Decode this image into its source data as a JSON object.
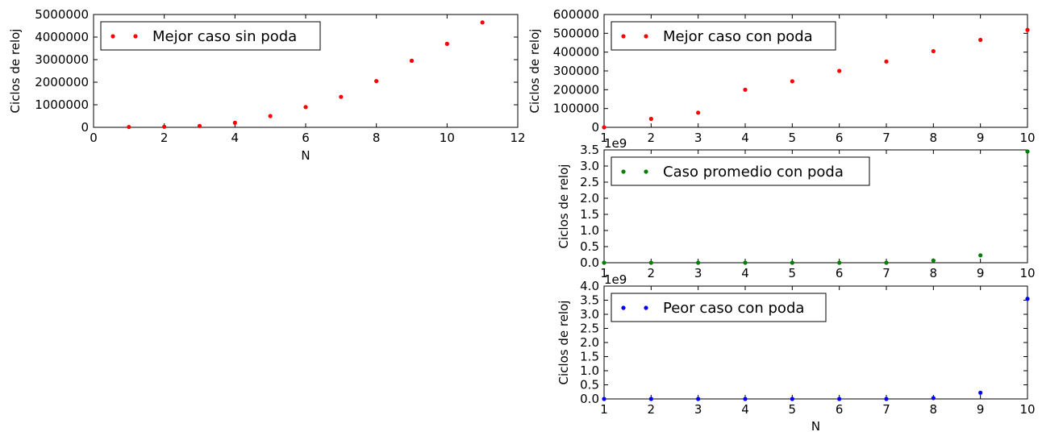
{
  "chart_data": [
    {
      "type": "scatter",
      "xlabel": "N",
      "ylabel": "Ciclos de reloj",
      "xlim": [
        0,
        12
      ],
      "ylim": [
        0,
        5000000
      ],
      "xticks": [
        "0",
        "2",
        "4",
        "6",
        "8",
        "10",
        "12"
      ],
      "yticks": [
        "0",
        "1000000",
        "2000000",
        "3000000",
        "4000000",
        "5000000"
      ],
      "offset_text": "",
      "legend_location": "top-left",
      "series": [
        {
          "name": "Mejor caso sin poda",
          "color": "#ff0000",
          "x": [
            1,
            2,
            3,
            4,
            5,
            6,
            7,
            8,
            9,
            10,
            11
          ],
          "y": [
            15000,
            25000,
            60000,
            200000,
            500000,
            900000,
            1350000,
            2050000,
            2950000,
            3700000,
            4650000
          ]
        }
      ]
    },
    {
      "type": "scatter",
      "xlabel": "",
      "ylabel": "Ciclos de reloj",
      "xlim": [
        1,
        10
      ],
      "ylim": [
        0,
        600000
      ],
      "xticks": [
        "1",
        "2",
        "3",
        "4",
        "5",
        "6",
        "7",
        "8",
        "9",
        "10"
      ],
      "yticks": [
        "0",
        "100000",
        "200000",
        "300000",
        "400000",
        "500000",
        "600000"
      ],
      "offset_text": "",
      "legend_location": "top-left",
      "series": [
        {
          "name": "Mejor caso con poda",
          "color": "#ff0000",
          "x": [
            1,
            2,
            3,
            4,
            5,
            6,
            7,
            8,
            9,
            10
          ],
          "y": [
            0,
            45000,
            78000,
            200000,
            245000,
            300000,
            350000,
            405000,
            465000,
            518000
          ]
        }
      ]
    },
    {
      "type": "scatter",
      "xlabel": "",
      "ylabel": "Ciclos de reloj",
      "xlim": [
        1,
        10
      ],
      "ylim": [
        0,
        3.5
      ],
      "xticks": [
        "1",
        "2",
        "3",
        "4",
        "5",
        "6",
        "7",
        "8",
        "9",
        "10"
      ],
      "yticks": [
        "0.0",
        "0.5",
        "1.0",
        "1.5",
        "2.0",
        "2.5",
        "3.0",
        "3.5"
      ],
      "offset_text": "1e9",
      "legend_location": "top-left",
      "series": [
        {
          "name": "Caso promedio con poda",
          "color": "#008000",
          "x": [
            1,
            2,
            3,
            4,
            5,
            6,
            7,
            8,
            9,
            10
          ],
          "y": [
            0.0,
            0.0,
            0.0,
            0.0,
            0.0,
            0.0,
            0.0,
            0.07,
            0.23,
            3.45
          ]
        }
      ]
    },
    {
      "type": "scatter",
      "xlabel": "N",
      "ylabel": "Ciclos de reloj",
      "xlim": [
        1,
        10
      ],
      "ylim": [
        0,
        4.0
      ],
      "xticks": [
        "1",
        "2",
        "3",
        "4",
        "5",
        "6",
        "7",
        "8",
        "9",
        "10"
      ],
      "yticks": [
        "0.0",
        "0.5",
        "1.0",
        "1.5",
        "2.0",
        "2.5",
        "3.0",
        "3.5",
        "4.0"
      ],
      "offset_text": "1e9",
      "legend_location": "top-left",
      "series": [
        {
          "name": "Peor caso con poda",
          "color": "#0000ff",
          "x": [
            1,
            2,
            3,
            4,
            5,
            6,
            7,
            8,
            9,
            10
          ],
          "y": [
            0.0,
            0.0,
            0.0,
            0.0,
            0.0,
            0.0,
            0.0,
            0.03,
            0.22,
            3.55
          ]
        }
      ]
    }
  ]
}
